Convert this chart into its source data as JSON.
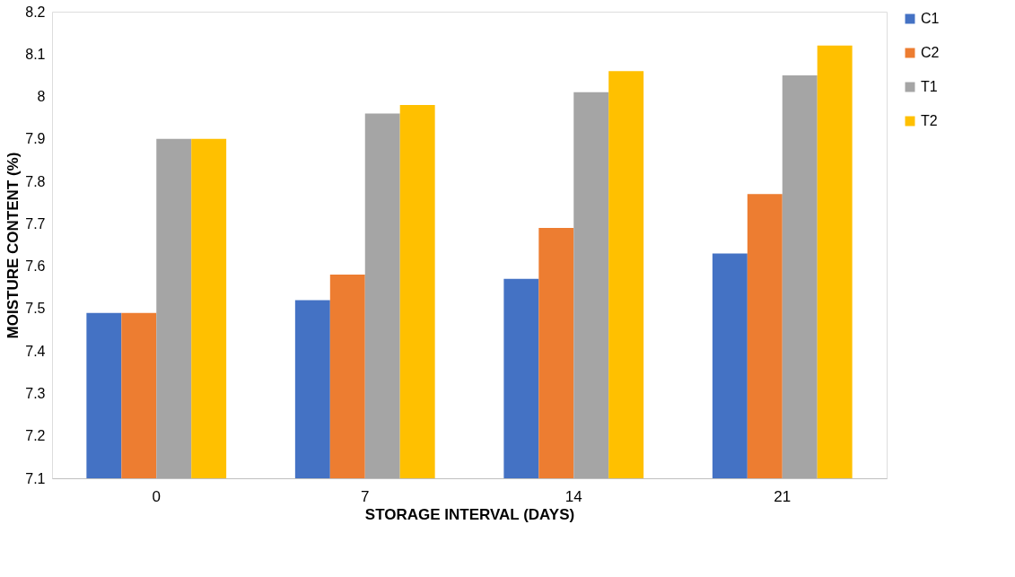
{
  "chart_data": {
    "type": "bar",
    "xlabel": "STORAGE INTERVAL (DAYS)",
    "ylabel": "MOISTURE CONTENT (%)",
    "categories": [
      "0",
      "7",
      "14",
      "21"
    ],
    "series": [
      {
        "name": "C1",
        "color": "#4472c4",
        "values": [
          7.49,
          7.52,
          7.57,
          7.63
        ]
      },
      {
        "name": "C2",
        "color": "#ed7d31",
        "values": [
          7.49,
          7.58,
          7.69,
          7.77
        ]
      },
      {
        "name": "T1",
        "color": "#a5a5a5",
        "values": [
          7.9,
          7.96,
          8.01,
          8.05
        ]
      },
      {
        "name": "T2",
        "color": "#ffc000",
        "values": [
          7.9,
          7.98,
          8.06,
          8.12
        ]
      }
    ],
    "ylim": [
      7.1,
      8.2
    ],
    "yticks": [
      7.1,
      7.2,
      7.3,
      7.4,
      7.5,
      7.6,
      7.7,
      7.8,
      7.9,
      8,
      8.1,
      8.2
    ],
    "grid": false,
    "legend": "right"
  }
}
